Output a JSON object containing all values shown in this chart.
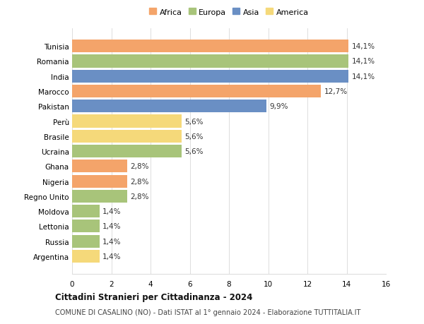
{
  "countries": [
    "Tunisia",
    "Romania",
    "India",
    "Marocco",
    "Pakistan",
    "Perù",
    "Brasile",
    "Ucraina",
    "Ghana",
    "Nigeria",
    "Regno Unito",
    "Moldova",
    "Lettonia",
    "Russia",
    "Argentina"
  ],
  "values": [
    14.1,
    14.1,
    14.1,
    12.7,
    9.9,
    5.6,
    5.6,
    5.6,
    2.8,
    2.8,
    2.8,
    1.4,
    1.4,
    1.4,
    1.4
  ],
  "labels": [
    "14,1%",
    "14,1%",
    "14,1%",
    "12,7%",
    "9,9%",
    "5,6%",
    "5,6%",
    "5,6%",
    "2,8%",
    "2,8%",
    "2,8%",
    "1,4%",
    "1,4%",
    "1,4%",
    "1,4%"
  ],
  "continents": [
    "Africa",
    "Europa",
    "Asia",
    "Africa",
    "Asia",
    "America",
    "America",
    "Europa",
    "Africa",
    "Africa",
    "Europa",
    "Europa",
    "Europa",
    "Europa",
    "America"
  ],
  "colors": {
    "Africa": "#F4A46A",
    "Europa": "#A8C47A",
    "Asia": "#6A8FC4",
    "America": "#F5D97A"
  },
  "legend_order": [
    "Africa",
    "Europa",
    "Asia",
    "America"
  ],
  "title": "Cittadini Stranieri per Cittadinanza - 2024",
  "subtitle": "COMUNE DI CASALINO (NO) - Dati ISTAT al 1° gennaio 2024 - Elaborazione TUTTITALIA.IT",
  "xlim": [
    0,
    16
  ],
  "xticks": [
    0,
    2,
    4,
    6,
    8,
    10,
    12,
    14,
    16
  ],
  "bg_color": "#ffffff",
  "grid_color": "#dddddd"
}
